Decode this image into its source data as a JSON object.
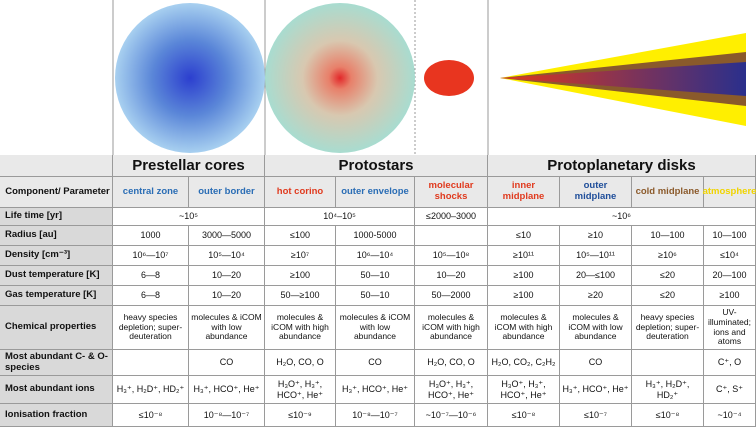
{
  "groups": [
    "Prestellar cores",
    "Protostars",
    "Protoplanetary disks"
  ],
  "component_header": "Component/ Parameter",
  "columns": [
    "central zone",
    "outer border",
    "hot corino",
    "outer envelope",
    "molecular shocks",
    "inner midplane",
    "outer midplane",
    "cold midplane",
    "atmosphere"
  ],
  "rows": [
    {
      "label": "Life time [yr]",
      "cells": [
        "~10⁵",
        "10⁴–10⁵",
        "≤2000–3000",
        "~10⁶"
      ]
    },
    {
      "label": "Radius [au]",
      "cells": [
        "1000",
        "3000—5000",
        "≤100",
        "1000-5000",
        null,
        "≤10",
        "≥10",
        "10—100",
        "10—100"
      ]
    },
    {
      "label": "Density [cm⁻³]",
      "cells": [
        "10⁶—10⁷",
        "10⁵—10⁴",
        "≥10⁷",
        "10⁶—10⁴",
        "10⁵—10⁸",
        "≥10¹¹",
        "10⁵—10¹¹",
        "≥10⁶",
        "≤10⁴"
      ]
    },
    {
      "label": "Dust temperature [K]",
      "cells": [
        "6—8",
        "10—20",
        "≥100",
        "50—10",
        "10—20",
        "≥100",
        "20—≤100",
        "≤20",
        "20—100"
      ]
    },
    {
      "label": "Gas temperature [K]",
      "cells": [
        "6—8",
        "10—20",
        "50—≥100",
        "50—10",
        "50—2000",
        "≥100",
        "≥20",
        "≤20",
        "≥100"
      ]
    },
    {
      "label": "Chemical properties",
      "cells": [
        "heavy species depletion; super-deuteration",
        "molecules & iCOM with low abundance",
        "molecules & iCOM with high abundance",
        "molecules & iCOM with low abundance",
        "molecules & iCOM with high abundance",
        "molecules & iCOM with high abundance",
        "molecules & iCOM with low abundance",
        "heavy species depletion; super-deuteration",
        "UV-illuminated; ions and atoms"
      ]
    },
    {
      "label": "Most abundant  C- & O- species",
      "cells": [
        null,
        "CO",
        "H₂O, CO, O",
        "CO",
        "H₂O, CO, O",
        "H₂O, CO₂, C₂H₂",
        "CO",
        null,
        "C⁺, O"
      ]
    },
    {
      "label": "Most abundant ions",
      "cells": [
        "H₃⁺, H₂D⁺, HD₂⁺",
        "H₃⁺, HCO⁺, He⁺",
        "H₃O⁺, H₃⁺, HCO⁺, He⁺",
        "H₃⁺, HCO⁺, He⁺",
        "H₃O⁺, H₃⁺, HCO⁺, He⁺",
        "H₃O⁺, H₃⁺, HCO⁺, He⁺",
        "H₃⁺, HCO⁺, He⁺",
        "H₃⁺, H₂D⁺, HD₂⁺",
        "C⁺, S⁺"
      ]
    },
    {
      "label": "Ionisation fraction",
      "cells": [
        "≤10⁻⁸",
        "10⁻⁸—10⁻⁷",
        "≤10⁻⁹",
        "10⁻⁸—10⁻⁷",
        "~10⁻⁷—10⁻⁶",
        "≤10⁻⁸",
        "≤10⁻⁷",
        "≤10⁻⁸",
        "~10⁻⁴"
      ]
    }
  ]
}
